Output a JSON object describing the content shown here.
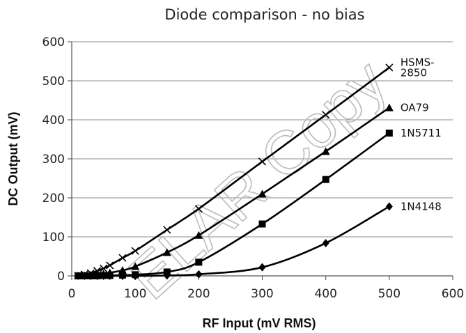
{
  "chart_data": {
    "type": "line",
    "title": "Diode comparison - no bias",
    "xlabel": "RF Input (mV RMS)",
    "ylabel": "DC Output (mV)",
    "xlim": [
      0,
      600
    ],
    "ylim": [
      0,
      600
    ],
    "x_ticks": [
      "0",
      "100",
      "200",
      "300",
      "400",
      "500",
      "600"
    ],
    "y_ticks": [
      "0",
      "100",
      "200",
      "300",
      "400",
      "500",
      "600"
    ],
    "grid": "horizontal",
    "watermark": "ELAR Copy",
    "series": [
      {
        "name": "HSMS-2850",
        "label_lines": [
          "HSMS-",
          "2850"
        ],
        "marker": "x",
        "points": [
          [
            10,
            1
          ],
          [
            20,
            4
          ],
          [
            30,
            7
          ],
          [
            40,
            13
          ],
          [
            50,
            19
          ],
          [
            60,
            27
          ],
          [
            80,
            46
          ],
          [
            100,
            64
          ],
          [
            150,
            118
          ],
          [
            200,
            172
          ],
          [
            300,
            293
          ],
          [
            400,
            413
          ],
          [
            500,
            534
          ]
        ]
      },
      {
        "name": "OA79",
        "label_lines": [
          "OA79"
        ],
        "marker": "triangle",
        "points": [
          [
            10,
            0
          ],
          [
            20,
            1
          ],
          [
            30,
            2
          ],
          [
            40,
            3
          ],
          [
            50,
            5
          ],
          [
            60,
            8
          ],
          [
            80,
            14
          ],
          [
            100,
            24
          ],
          [
            150,
            60
          ],
          [
            200,
            104
          ],
          [
            300,
            210
          ],
          [
            400,
            319
          ],
          [
            500,
            431
          ]
        ]
      },
      {
        "name": "1N5711",
        "label_lines": [
          "1N5711"
        ],
        "marker": "square",
        "points": [
          [
            10,
            0
          ],
          [
            20,
            0
          ],
          [
            30,
            0
          ],
          [
            40,
            0
          ],
          [
            50,
            1
          ],
          [
            60,
            1
          ],
          [
            80,
            2
          ],
          [
            100,
            3
          ],
          [
            150,
            10
          ],
          [
            200,
            35
          ],
          [
            300,
            133
          ],
          [
            400,
            247
          ],
          [
            500,
            366
          ]
        ]
      },
      {
        "name": "1N4148",
        "label_lines": [
          "1N4148"
        ],
        "marker": "diamond",
        "points": [
          [
            10,
            0
          ],
          [
            20,
            0
          ],
          [
            30,
            0
          ],
          [
            40,
            0
          ],
          [
            50,
            0
          ],
          [
            60,
            0
          ],
          [
            80,
            0
          ],
          [
            100,
            0
          ],
          [
            150,
            1
          ],
          [
            200,
            4
          ],
          [
            300,
            22
          ],
          [
            400,
            84
          ],
          [
            500,
            178
          ]
        ]
      }
    ],
    "colors": {
      "line": "#000000",
      "grid": "#8c8c8c",
      "watermark": "#bbbbbb"
    }
  }
}
